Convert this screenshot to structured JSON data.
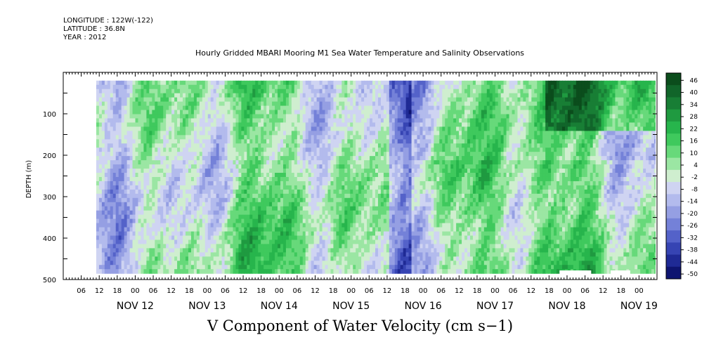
{
  "header": {
    "longitude": "LONGITUDE : 122W(-122)",
    "latitude": "LATITUDE : 36.8N",
    "year": "YEAR : 2012"
  },
  "title": "Hourly Gridded MBARI Mooring M1 Sea Water Temperature and Salinity Observations",
  "xlabel": "V Component of Water Velocity (cm s−1)",
  "colors": {
    "background": "#ffffff",
    "missing": "#ffffff",
    "axis": "#000000"
  },
  "chart_data": {
    "type": "heatmap",
    "title": "Hourly Gridded MBARI Mooring M1 Sea Water Temperature and Salinity Observations",
    "xlabel": "V Component of Water Velocity (cm s−1)",
    "ylabel": "DEPTH (m)",
    "y_inverted": true,
    "ylim": [
      0,
      500
    ],
    "y_ticks": [
      100,
      200,
      300,
      400,
      500
    ],
    "x_range_hours": [
      "Nov 11 00:00",
      "Nov 19 06:00"
    ],
    "hour_ticks": [
      "06",
      "12",
      "18",
      "00",
      "06",
      "12",
      "18",
      "00",
      "06",
      "12",
      "18",
      "00",
      "06",
      "12",
      "18",
      "00",
      "06",
      "12",
      "18",
      "00",
      "06",
      "12",
      "18",
      "00",
      "06",
      "12",
      "18",
      "00",
      "06",
      "12",
      "18",
      "00"
    ],
    "day_labels": [
      "NOV 12",
      "NOV 13",
      "NOV 14",
      "NOV 15",
      "NOV 16",
      "NOV 17",
      "NOV 18",
      "NOV 19"
    ],
    "colorbar": {
      "levels": [
        46,
        40,
        34,
        28,
        22,
        16,
        10,
        4,
        -2,
        -8,
        -14,
        -20,
        -26,
        -32,
        -38,
        -44,
        -50
      ],
      "colors": [
        "#0b4d1c",
        "#11652a",
        "#187e35",
        "#1f9a40",
        "#27b54c",
        "#3fc95d",
        "#67d97a",
        "#9be6a3",
        "#cfeecf",
        "#cfd4f2",
        "#b3bbed",
        "#959fe3",
        "#7481d8",
        "#5462c9",
        "#3644b3",
        "#1f2a95",
        "#0e1470"
      ]
    },
    "data_extent": {
      "time_start": "Nov 11 ~11:00",
      "time_end": "Nov 19 ~06:00",
      "depth_min_m": 20,
      "depth_max_m": 485
    },
    "grid": false,
    "legend": "right"
  }
}
